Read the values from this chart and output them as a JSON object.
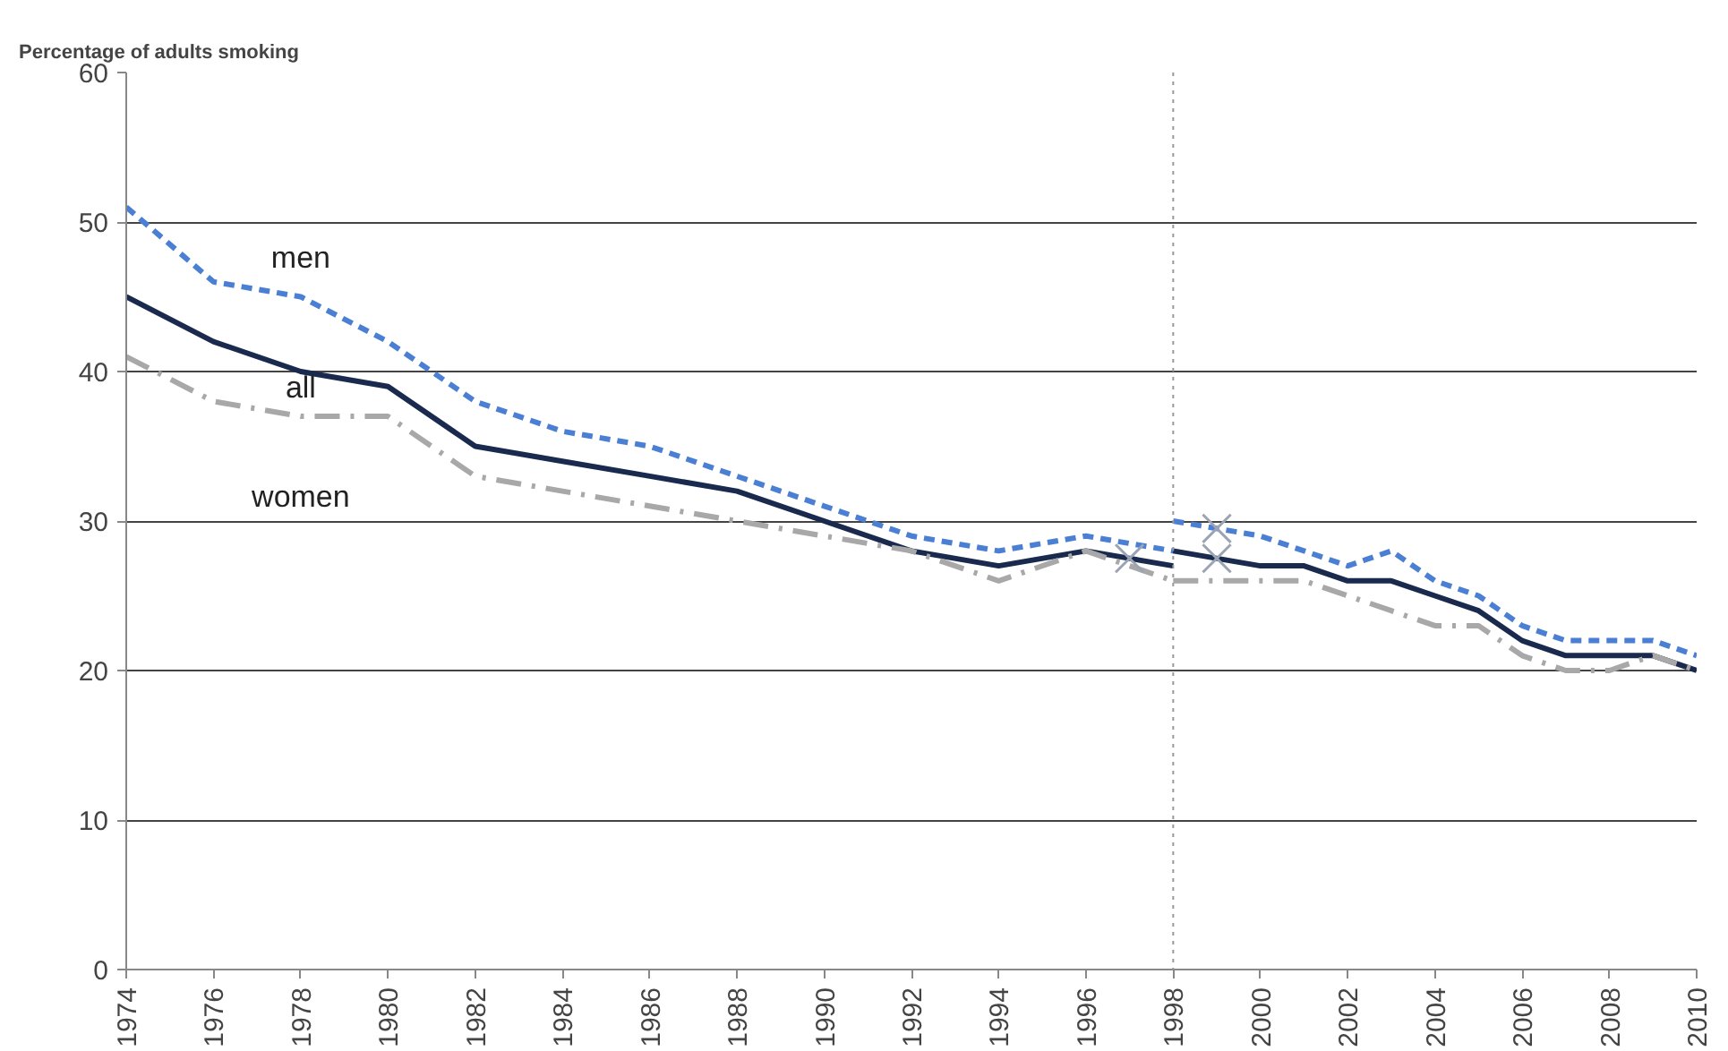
{
  "chart_data": {
    "type": "line",
    "ylabel": "Percentage of adults smoking",
    "xlim": [
      1974,
      2010
    ],
    "xticks": [
      1974,
      1976,
      1978,
      1980,
      1982,
      1984,
      1986,
      1988,
      1990,
      1992,
      1994,
      1996,
      1998,
      2000,
      2002,
      2004,
      2006,
      2008,
      2010
    ],
    "ylim": [
      0,
      60
    ],
    "yticks": [
      0,
      10,
      20,
      30,
      40,
      50,
      60
    ],
    "grid": "y",
    "series": [
      {
        "name": "men",
        "color": "#4a7fd4",
        "line_style": "dashed",
        "x": [
          1974,
          1976,
          1978,
          1980,
          1982,
          1984,
          1986,
          1988,
          1990,
          1992,
          1994,
          1996,
          1998,
          1998,
          2000,
          2001,
          2002,
          2003,
          2004,
          2005,
          2006,
          2007,
          2008,
          2009,
          2010
        ],
        "values": [
          51,
          46,
          45,
          42,
          38,
          36,
          35,
          33,
          31,
          29,
          28,
          29,
          28,
          30,
          29,
          28,
          27,
          28,
          26,
          25,
          23,
          22,
          22,
          22,
          21
        ]
      },
      {
        "name": "all",
        "color": "#1a2a4e",
        "line_style": "solid",
        "x": [
          1974,
          1976,
          1978,
          1980,
          1982,
          1984,
          1986,
          1988,
          1990,
          1992,
          1994,
          1996,
          1998,
          1998,
          2000,
          2001,
          2002,
          2003,
          2004,
          2005,
          2006,
          2007,
          2008,
          2009,
          2010
        ],
        "values": [
          45,
          42,
          40,
          39,
          35,
          34,
          33,
          32,
          30,
          28,
          27,
          28,
          27,
          28,
          27,
          27,
          26,
          26,
          25,
          24,
          22,
          21,
          21,
          21,
          20
        ]
      },
      {
        "name": "women",
        "color": "#a8a8a8",
        "line_style": "dashdot",
        "x": [
          1974,
          1976,
          1978,
          1980,
          1982,
          1984,
          1986,
          1988,
          1990,
          1992,
          1994,
          1996,
          1998,
          1998,
          2000,
          2001,
          2002,
          2003,
          2004,
          2005,
          2006,
          2007,
          2008,
          2009,
          2010
        ],
        "values": [
          41,
          38,
          37,
          37,
          33,
          32,
          31,
          30,
          29,
          28,
          26,
          28,
          26,
          26,
          26,
          26,
          25,
          24,
          23,
          23,
          21,
          20,
          20,
          21,
          20
        ]
      },
      {
        "type": "scatter",
        "marker": "cross",
        "color": "#9aa4b4",
        "x": [
          1997,
          1999,
          1999
        ],
        "values": [
          27.5,
          27.5,
          29.5
        ]
      }
    ],
    "ref_lines": [
      {
        "axis": "x",
        "value": 1998,
        "color": "#999999",
        "line_style": "dotted"
      }
    ]
  }
}
